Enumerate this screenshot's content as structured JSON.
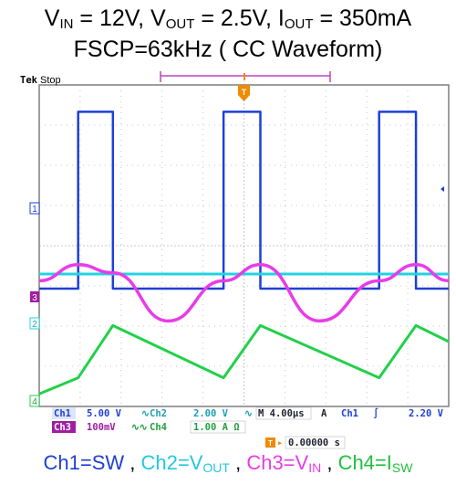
{
  "title": {
    "line1": {
      "a": "V",
      "a_sub": "IN",
      "b": " = 12V, V",
      "b_sub": "OUT",
      "c": " = 2.5V, I",
      "c_sub": "OUT",
      "d": " = 350mA"
    },
    "line2": "FSCP=63kHz ( CC Waveform)"
  },
  "scope": {
    "brand": "Tek",
    "status": "Stop",
    "trigger_marker": "T",
    "ground_markers": [
      "1",
      "3",
      "2",
      "4"
    ],
    "readout": {
      "ch1_label": "Ch1",
      "ch1_scale": "5.00 V",
      "ch2_label": "Ch2",
      "ch2_scale": "2.00 V",
      "ch3_label": "Ch3",
      "ch3_scale": "100mV",
      "ch4_label": "Ch4",
      "ch4_scale": "1.00 A Ω",
      "timebase": "M 4.00µs",
      "acq": "A",
      "trig_source": "Ch1",
      "trig_slope": "∫",
      "trig_level": "2.20 V",
      "trig_offset": "0.00000 s"
    }
  },
  "legend": {
    "ch1": "Ch1=SW",
    "ch2_a": "Ch2=V",
    "ch2_sub": "OUT",
    "ch3_a": "Ch3=V",
    "ch3_sub": "IN",
    "ch4_a": "Ch4=I",
    "ch4_sub": "SW",
    "sep": " , "
  },
  "colors": {
    "ch1": "#1f3fd6",
    "ch2": "#22d3e0",
    "ch3": "#e83ce8",
    "ch4": "#22d04a",
    "trigger": "#f08a00",
    "bracket": "#c040c0",
    "grid": "#b8b8b8",
    "frame": "#7e7e7e"
  },
  "chart_data": {
    "type": "line",
    "x_unit": "µs",
    "x_per_div": 4.0,
    "x_range": [
      -18,
      22
    ],
    "trigger_time": 0,
    "grid": true,
    "series": [
      {
        "name": "Ch1=SW",
        "unit": "V",
        "per_div": 5.0,
        "x": [
          -18,
          -14.2,
          -14.2,
          -10.8,
          -10.8,
          0,
          0,
          3.6,
          3.6,
          15.2,
          15.2,
          18.8,
          18.8,
          22
        ],
        "y": [
          -10,
          -10,
          12,
          12,
          -10,
          -10,
          12,
          12,
          -10,
          -10,
          12,
          12,
          -10,
          -10
        ]
      },
      {
        "name": "Ch2=VOUT",
        "unit": "V",
        "per_div": 2.0,
        "x": [
          -18,
          22
        ],
        "y": [
          2.5,
          2.5
        ]
      },
      {
        "name": "Ch3=VIN",
        "unit": "mV",
        "per_div": 100,
        "x": [
          -18,
          -14.2,
          -10.8,
          -5.4,
          0,
          3.6,
          9.4,
          15.2,
          18.8,
          22
        ],
        "y": [
          40,
          80,
          60,
          -60,
          40,
          80,
          -60,
          40,
          80,
          40
        ]
      },
      {
        "name": "Ch4=ISW",
        "unit": "A",
        "per_div": 1.0,
        "x": [
          -18,
          -14.2,
          -10.8,
          0,
          3.6,
          15.2,
          18.8,
          22
        ],
        "y": [
          0.2,
          0.6,
          1.9,
          0.6,
          1.9,
          0.6,
          1.9,
          1.5
        ]
      }
    ]
  }
}
